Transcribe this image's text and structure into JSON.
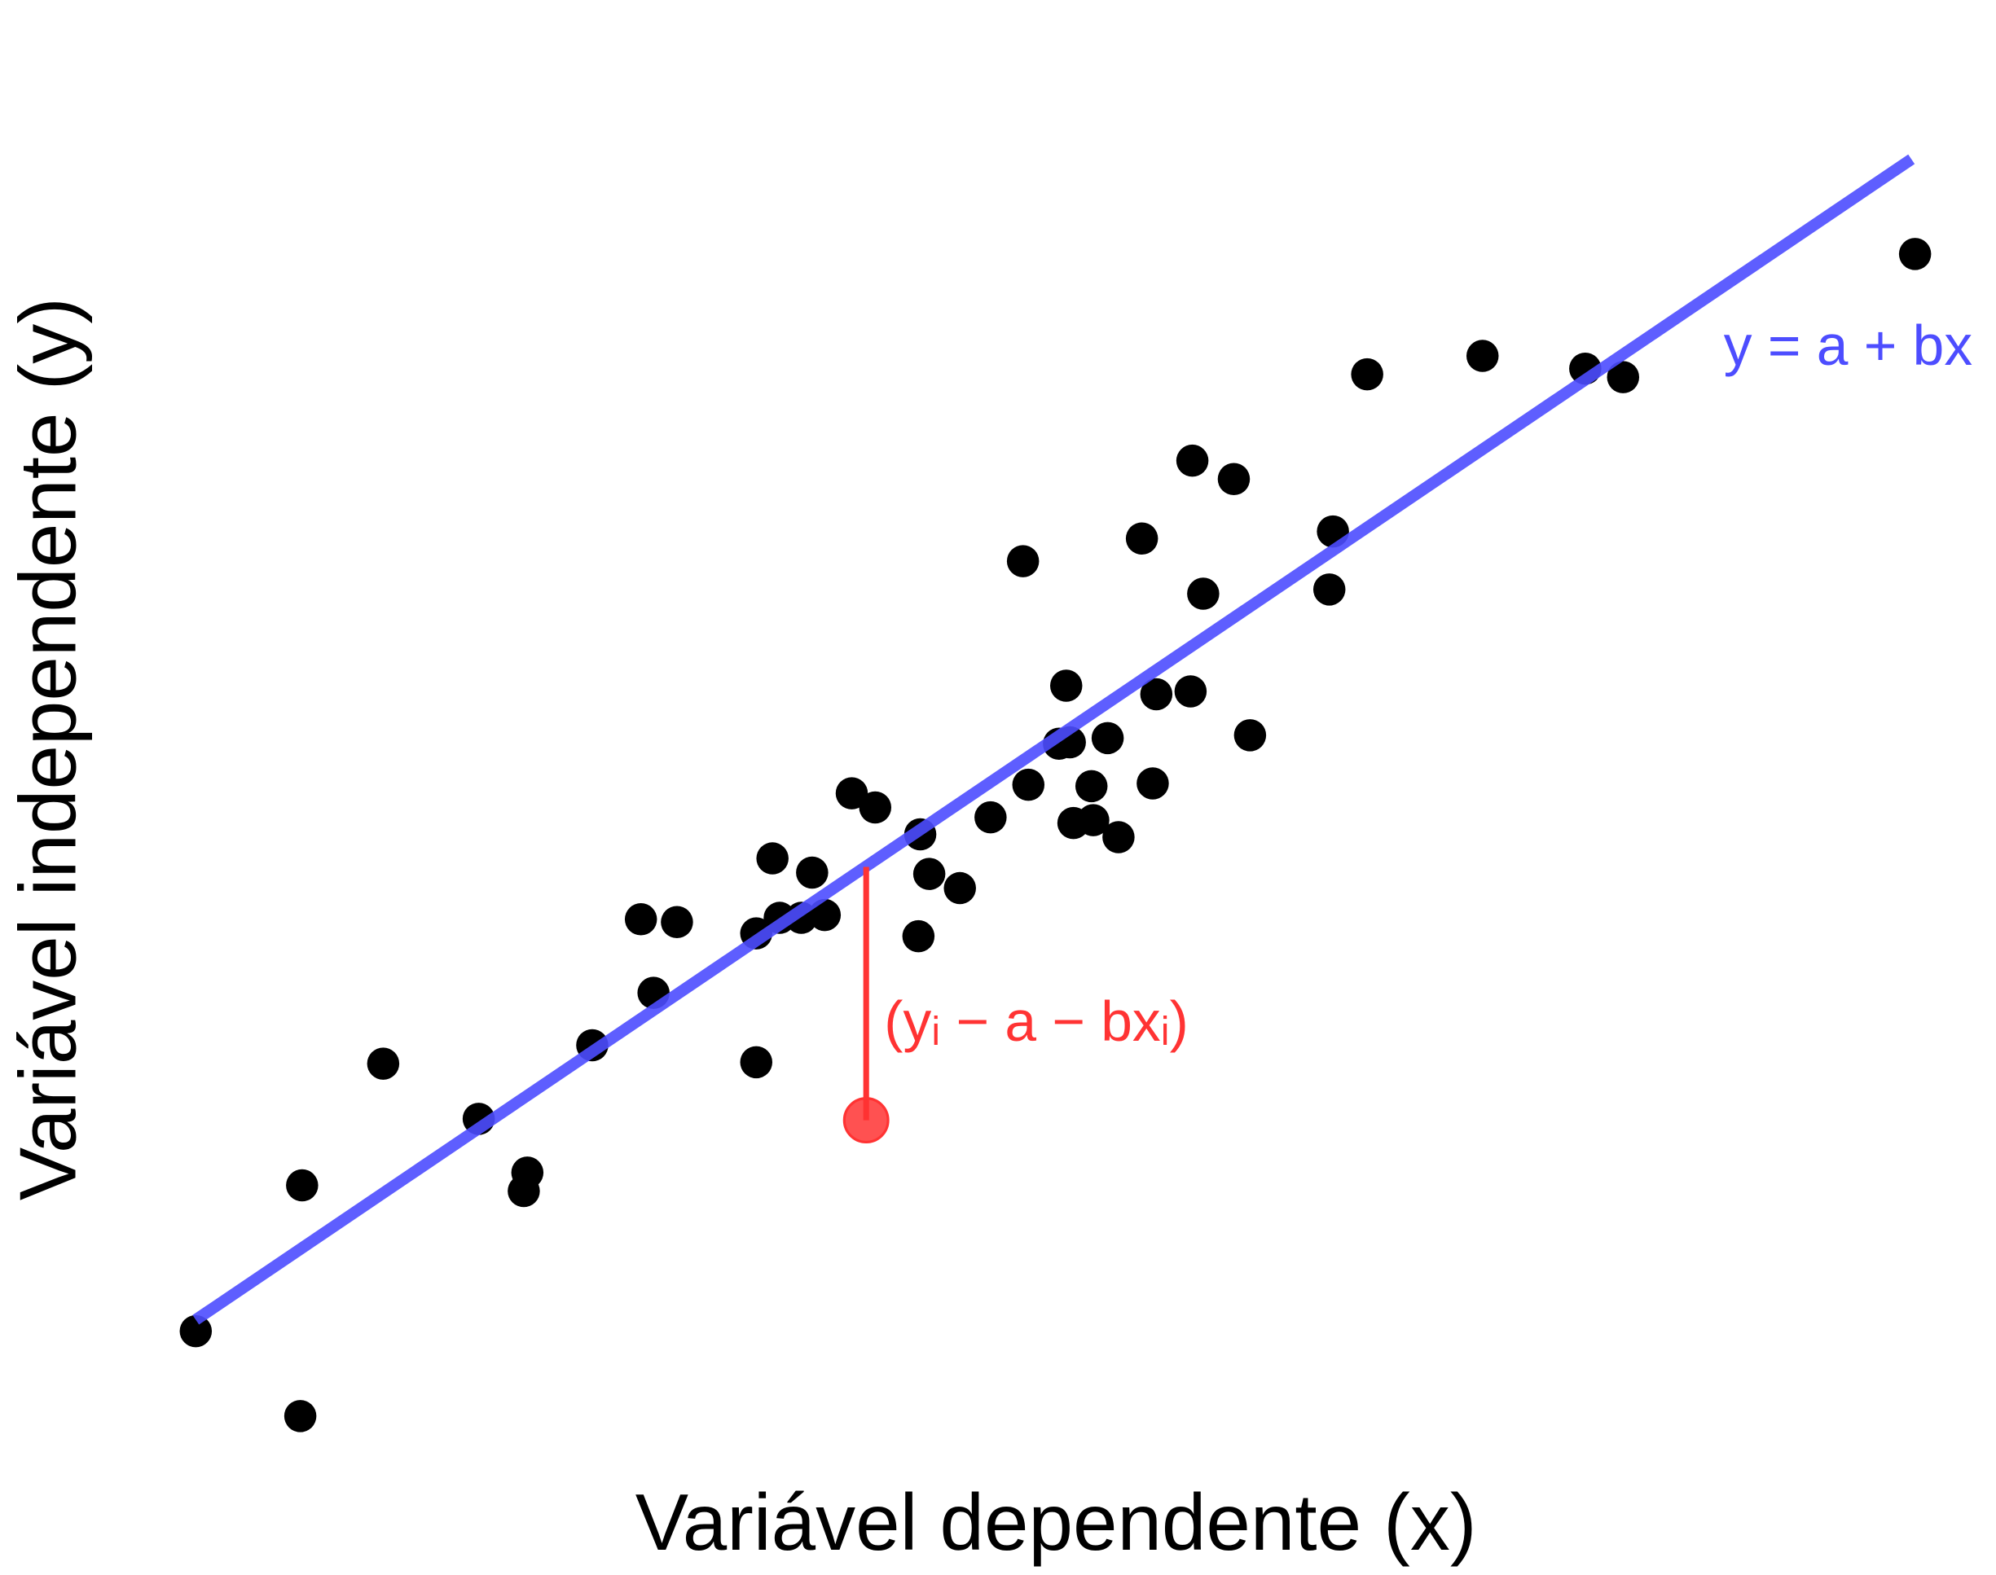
{
  "chart_data": {
    "type": "scatter",
    "x_label": "Variável dependente (x)",
    "y_label": "Variável independente (y)",
    "xlim": [
      0,
      100
    ],
    "ylim": [
      0,
      100
    ],
    "points": {
      "color": "#000000",
      "x": [
        3.7,
        9.5,
        9.6,
        14.1,
        19.4,
        21.9,
        22.1,
        25.7,
        28.4,
        29.1,
        30.4,
        34.8,
        34.8,
        35.7,
        36.1,
        37.3,
        37.9,
        38.6,
        40.1,
        41.4,
        43.8,
        43.9,
        44.4,
        46.1,
        47.8,
        49.6,
        49.9,
        51.6,
        52.0,
        52.2,
        52.4,
        53.4,
        53.5,
        54.3,
        54.9,
        56.2,
        56.8,
        57.0,
        58.9,
        59.0,
        59.6,
        61.3,
        62.2,
        66.6,
        66.8,
        68.7,
        75.1,
        80.8,
        82.9,
        99.1
      ],
      "values": [
        10.5,
        4.5,
        20.8,
        29.4,
        25.5,
        20.4,
        21.7,
        30.7,
        39.6,
        34.4,
        39.4,
        38.6,
        29.5,
        43.9,
        39.7,
        39.7,
        42.9,
        39.9,
        48.5,
        47.5,
        38.4,
        45.6,
        42.8,
        41.8,
        46.8,
        64.9,
        49.1,
        52.0,
        56.1,
        52.1,
        46.4,
        49.0,
        46.6,
        52.4,
        45.4,
        66.5,
        49.2,
        55.5,
        55.7,
        72.0,
        62.6,
        70.7,
        52.6,
        62.9,
        67.0,
        78.1,
        79.4,
        78.5,
        77.9,
        86.6
      ]
    },
    "fit_line": {
      "color": "#4d4dff",
      "label": "y = a + bx",
      "x": [
        3.7,
        98.9
      ],
      "values": [
        11.3,
        93.3
      ]
    },
    "residual": {
      "color": "#ff3333",
      "label": "(yᵢ − a − bxᵢ)",
      "x": 40.9,
      "y": 25.4,
      "fitted": 43.3
    }
  }
}
